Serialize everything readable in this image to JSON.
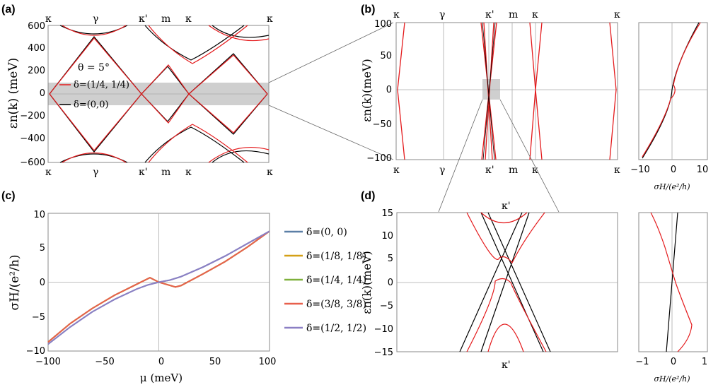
{
  "panels": {
    "a": {
      "label": "(a)",
      "ylabel": "εn(k) (meV)",
      "yticks": [
        "600",
        "400",
        "200",
        "0",
        "−200",
        "−400",
        "−600"
      ],
      "kpoints_top": [
        "κ",
        "γ",
        "κ'",
        "m",
        "κ",
        "κ"
      ],
      "kpoints_bottom": [
        "κ",
        "γ",
        "κ'",
        "m",
        "κ",
        "κ"
      ],
      "annot_theta": "θ = 5°",
      "legend_red": "δ=(1/4, 1/4)",
      "legend_black": "δ=(0,0)"
    },
    "b": {
      "label": "(b)",
      "ylabel": "εn(k)(meV)",
      "yticks": [
        "100",
        "50",
        "0",
        "−50",
        "−100"
      ],
      "kpoints_top": [
        "κ",
        "γ",
        "κ'",
        "m",
        "κ",
        "κ"
      ],
      "kpoints_bottom": [
        "κ",
        "γ",
        "κ'",
        "m",
        "κ",
        "κ"
      ],
      "side_xticks": [
        "−10",
        "0",
        "10"
      ],
      "side_xlabel": "σH/(e²/h)"
    },
    "c": {
      "label": "(c)",
      "ylabel": "σH/(e²/h)",
      "xlabel": "μ (meV)",
      "yticks": [
        "10",
        "5",
        "0",
        "−5",
        "−10"
      ],
      "xticks": [
        "−100",
        "−50",
        "0",
        "50",
        "100"
      ]
    },
    "d": {
      "label": "(d)",
      "ylabel": "εn(k)(meV)",
      "yticks": [
        "15",
        "10",
        "5",
        "0",
        "−5",
        "−10",
        "−15"
      ],
      "k_top": "κ'",
      "k_bottom": "κ'",
      "side_xticks": [
        "−1",
        "0",
        "1"
      ],
      "side_xlabel": "σH/(e²/h)"
    }
  },
  "chart_data": [
    {
      "type": "line",
      "title": "",
      "panel": "a",
      "ylabel": "εn(k) (meV)",
      "ylim": [
        -600,
        600
      ],
      "x_labels": [
        "κ",
        "γ",
        "κ'",
        "m",
        "κ",
        "κ"
      ],
      "series": [
        {
          "name": "δ=(1/4, 1/4)",
          "color": "#e41a1c"
        },
        {
          "name": "δ=(0,0)",
          "color": "#000000"
        }
      ],
      "annotation": "θ = 5°",
      "shaded_band": [
        -100,
        100
      ]
    },
    {
      "type": "line",
      "panel": "b",
      "ylabel": "εn(k)(meV)",
      "ylim": [
        -100,
        100
      ],
      "x_labels": [
        "κ",
        "γ",
        "κ'",
        "m",
        "κ",
        "κ"
      ],
      "side_xlim": [
        -10,
        10
      ]
    },
    {
      "type": "line",
      "panel": "c",
      "xlabel": "μ (meV)",
      "ylabel": "σH/(e²/h)",
      "xlim": [
        -100,
        100
      ],
      "ylim": [
        -10,
        10
      ],
      "series": [
        {
          "name": "δ=(0, 0)",
          "color": "#5b7fa6",
          "x": [
            -100,
            -80,
            -60,
            -40,
            -20,
            -10,
            0,
            10,
            20,
            40,
            60,
            80,
            100
          ],
          "values": [
            -9,
            -6.5,
            -4.3,
            -2.5,
            -1.0,
            -0.4,
            0,
            0.3,
            0.8,
            2.2,
            3.8,
            5.6,
            7.4
          ]
        },
        {
          "name": "δ=(1/8, 1/8)",
          "color": "#d4a017",
          "x": [
            -100,
            -80,
            -60,
            -40,
            -20,
            -8,
            0,
            15,
            20,
            40,
            60,
            80,
            100
          ],
          "values": [
            -8.7,
            -6.0,
            -3.8,
            -1.9,
            -0.3,
            0.65,
            0.0,
            -0.7,
            -0.5,
            1.2,
            3.0,
            5.1,
            7.4
          ]
        },
        {
          "name": "δ=(1/4, 1/4)",
          "color": "#7fb03b",
          "x": [
            -100,
            -80,
            -60,
            -40,
            -20,
            -8,
            0,
            15,
            20,
            40,
            60,
            80,
            100
          ],
          "values": [
            -8.7,
            -6.0,
            -3.8,
            -1.9,
            -0.3,
            0.65,
            0.0,
            -0.7,
            -0.5,
            1.2,
            3.0,
            5.1,
            7.4
          ]
        },
        {
          "name": "δ=(3/8, 3/8)",
          "color": "#e8604c",
          "x": [
            -100,
            -80,
            -60,
            -40,
            -20,
            -8,
            0,
            15,
            20,
            40,
            60,
            80,
            100
          ],
          "values": [
            -8.7,
            -6.0,
            -3.8,
            -1.9,
            -0.3,
            0.65,
            0.0,
            -0.7,
            -0.5,
            1.2,
            3.0,
            5.1,
            7.4
          ]
        },
        {
          "name": "δ=(1/2, 1/2)",
          "color": "#8b7fc4",
          "x": [
            -100,
            -80,
            -60,
            -40,
            -20,
            -10,
            0,
            10,
            20,
            40,
            60,
            80,
            100
          ],
          "values": [
            -9,
            -6.5,
            -4.3,
            -2.5,
            -1.0,
            -0.4,
            0,
            0.3,
            0.8,
            2.2,
            3.8,
            5.6,
            7.4
          ]
        }
      ]
    },
    {
      "type": "line",
      "panel": "d",
      "ylabel": "εn(k)(meV)",
      "ylim": [
        -15,
        15
      ],
      "side_xlim": [
        -1,
        1
      ]
    }
  ]
}
